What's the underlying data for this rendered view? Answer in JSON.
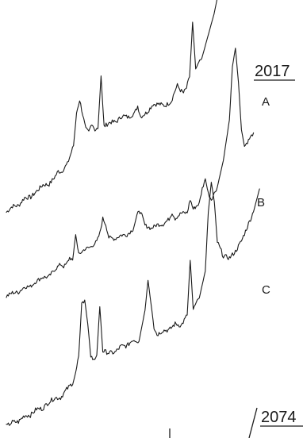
{
  "chart_data": {
    "type": "line",
    "title": "",
    "xlabel": "",
    "ylabel": "",
    "grid": false,
    "legend": "none",
    "range_labels": {
      "top_right": "2017",
      "bottom_right": "2074"
    },
    "series": [
      {
        "name": "A",
        "points": [
          [
            0,
            1
          ],
          [
            2,
            3
          ],
          [
            4,
            2
          ],
          [
            6,
            5
          ],
          [
            8,
            4
          ],
          [
            10,
            6
          ],
          [
            12,
            8
          ],
          [
            14,
            7
          ],
          [
            16,
            10
          ],
          [
            17,
            12
          ],
          [
            18,
            11
          ],
          [
            20,
            14
          ],
          [
            21,
            18
          ],
          [
            22,
            22
          ],
          [
            23,
            38
          ],
          [
            24,
            44
          ],
          [
            25,
            36
          ],
          [
            26,
            28
          ],
          [
            27,
            26
          ],
          [
            28,
            30
          ],
          [
            29,
            26
          ],
          [
            30,
            26
          ],
          [
            31,
            52
          ],
          [
            32,
            26
          ],
          [
            34,
            27
          ],
          [
            36,
            26
          ],
          [
            38,
            28
          ],
          [
            40,
            26
          ],
          [
            42,
            27
          ],
          [
            43,
            30
          ],
          [
            44,
            24
          ],
          [
            46,
            25
          ],
          [
            48,
            28
          ],
          [
            50,
            27
          ],
          [
            52,
            25
          ],
          [
            54,
            26
          ],
          [
            55,
            30
          ],
          [
            56,
            33
          ],
          [
            57,
            30
          ],
          [
            58,
            28
          ],
          [
            59,
            30
          ],
          [
            60,
            35
          ],
          [
            61,
            62
          ],
          [
            62,
            38
          ],
          [
            64,
            42
          ],
          [
            66,
            52
          ],
          [
            68,
            62
          ],
          [
            70,
            76
          ],
          [
            71,
            86
          ],
          [
            72,
            100
          ],
          [
            73,
            98
          ],
          [
            74,
            80
          ],
          [
            75,
            72
          ],
          [
            76,
            68
          ],
          [
            78,
            66
          ],
          [
            80,
            70
          ],
          [
            82,
            72
          ],
          [
            84,
            76
          ]
        ]
      },
      {
        "name": "B",
        "points": [
          [
            0,
            2
          ],
          [
            2,
            3
          ],
          [
            4,
            2
          ],
          [
            6,
            4
          ],
          [
            8,
            3
          ],
          [
            10,
            5
          ],
          [
            12,
            6
          ],
          [
            14,
            5
          ],
          [
            16,
            8
          ],
          [
            18,
            10
          ],
          [
            19,
            8
          ],
          [
            20,
            9
          ],
          [
            21,
            12
          ],
          [
            22,
            10
          ],
          [
            23,
            24
          ],
          [
            24,
            12
          ],
          [
            26,
            14
          ],
          [
            28,
            14
          ],
          [
            30,
            16
          ],
          [
            31,
            20
          ],
          [
            32,
            28
          ],
          [
            33,
            24
          ],
          [
            34,
            16
          ],
          [
            36,
            14
          ],
          [
            38,
            15
          ],
          [
            40,
            14
          ],
          [
            42,
            16
          ],
          [
            43,
            21
          ],
          [
            44,
            26
          ],
          [
            45,
            22
          ],
          [
            46,
            16
          ],
          [
            48,
            13
          ],
          [
            50,
            14
          ],
          [
            52,
            13
          ],
          [
            54,
            15
          ],
          [
            55,
            18
          ],
          [
            56,
            14
          ],
          [
            58,
            16
          ],
          [
            60,
            15
          ],
          [
            61,
            22
          ],
          [
            62,
            16
          ],
          [
            64,
            18
          ],
          [
            65,
            26
          ],
          [
            66,
            31
          ],
          [
            67,
            22
          ],
          [
            68,
            18
          ],
          [
            70,
            24
          ],
          [
            72,
            38
          ],
          [
            74,
            60
          ],
          [
            75,
            90
          ],
          [
            76,
            100
          ],
          [
            77,
            80
          ],
          [
            78,
            52
          ],
          [
            79,
            42
          ],
          [
            80,
            44
          ],
          [
            82,
            48
          ]
        ]
      },
      {
        "name": "C",
        "points": [
          [
            0,
            1
          ],
          [
            2,
            2
          ],
          [
            4,
            1
          ],
          [
            6,
            3
          ],
          [
            8,
            2
          ],
          [
            10,
            4
          ],
          [
            12,
            3
          ],
          [
            14,
            5
          ],
          [
            16,
            6
          ],
          [
            18,
            5
          ],
          [
            20,
            8
          ],
          [
            22,
            10
          ],
          [
            23,
            14
          ],
          [
            24,
            22
          ],
          [
            25,
            46
          ],
          [
            26,
            48
          ],
          [
            27,
            36
          ],
          [
            28,
            20
          ],
          [
            29,
            17
          ],
          [
            30,
            19
          ],
          [
            31,
            42
          ],
          [
            32,
            20
          ],
          [
            34,
            18
          ],
          [
            36,
            17
          ],
          [
            38,
            19
          ],
          [
            40,
            18
          ],
          [
            42,
            20
          ],
          [
            44,
            18
          ],
          [
            46,
            32
          ],
          [
            47,
            46
          ],
          [
            48,
            34
          ],
          [
            49,
            22
          ],
          [
            50,
            18
          ],
          [
            52,
            19
          ],
          [
            54,
            18
          ],
          [
            56,
            20
          ],
          [
            58,
            18
          ],
          [
            60,
            22
          ],
          [
            61,
            48
          ],
          [
            62,
            24
          ],
          [
            64,
            28
          ],
          [
            66,
            40
          ],
          [
            67,
            68
          ],
          [
            68,
            82
          ],
          [
            69,
            72
          ],
          [
            70,
            52
          ],
          [
            72,
            44
          ],
          [
            74,
            42
          ],
          [
            76,
            44
          ],
          [
            78,
            48
          ],
          [
            80,
            54
          ],
          [
            82,
            60
          ],
          [
            84,
            70
          ]
        ]
      }
    ]
  }
}
